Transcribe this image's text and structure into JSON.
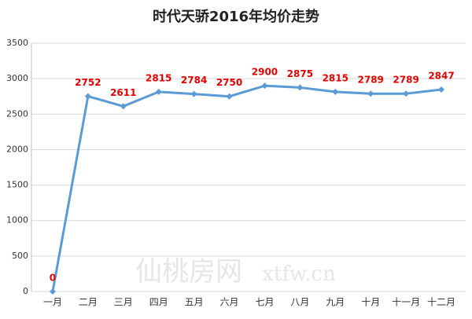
{
  "chart_data": {
    "type": "line",
    "title": "时代天骄2016年均价走势",
    "categories": [
      "一月",
      "二月",
      "三月",
      "四月",
      "五月",
      "六月",
      "七月",
      "八月",
      "九月",
      "十月",
      "十一月",
      "十二月"
    ],
    "series": [
      {
        "color": "#5b9bd5",
        "values": [
          0,
          2752,
          2611,
          2815,
          2784,
          2750,
          2900,
          2875,
          2815,
          2789,
          2789,
          2847
        ]
      }
    ],
    "label_color": "#e00000",
    "ylim": [
      0,
      3500
    ],
    "yticks": [
      0,
      500,
      1000,
      1500,
      2000,
      2500,
      3000,
      3500
    ],
    "grid": true
  },
  "watermark": {
    "brand": "仙桃房网",
    "site": "xtfw.cn"
  }
}
